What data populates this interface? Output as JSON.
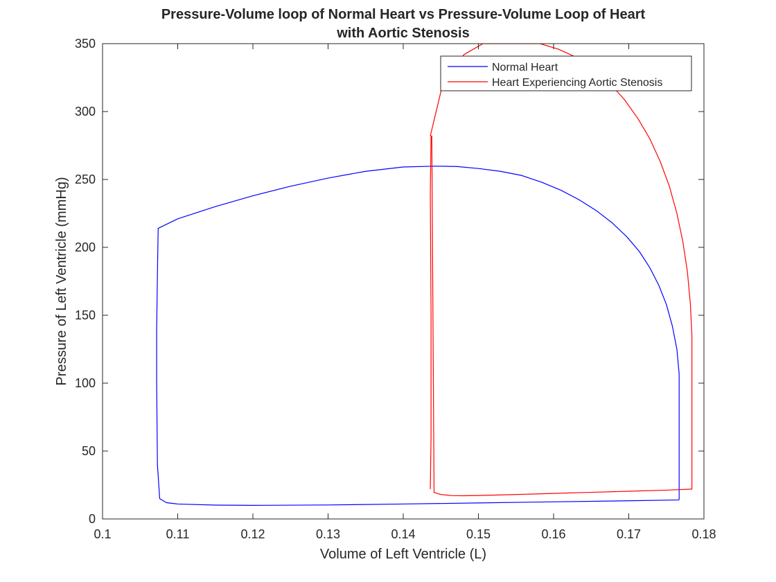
{
  "chart_data": {
    "type": "line",
    "title": [
      "Pressure-Volume loop of Normal Heart vs Pressure-Volume Loop of Heart",
      "with Aortic Stenosis"
    ],
    "xlabel": "Volume of Left Ventricle (L)",
    "ylabel": "Pressure of Left Ventricle (mmHg)",
    "xlim": [
      0.1,
      0.18
    ],
    "ylim": [
      0,
      350
    ],
    "xticks": [
      0.1,
      0.11,
      0.12,
      0.13,
      0.14,
      0.15,
      0.16,
      0.17,
      0.18
    ],
    "xtick_labels": [
      "0.1",
      "0.11",
      "0.12",
      "0.13",
      "0.14",
      "0.15",
      "0.16",
      "0.17",
      "0.18"
    ],
    "yticks": [
      0,
      50,
      100,
      150,
      200,
      250,
      300,
      350
    ],
    "ytick_labels": [
      "0",
      "50",
      "100",
      "150",
      "200",
      "250",
      "300",
      "350"
    ],
    "grid": false,
    "legend_position": "top-right",
    "series": [
      {
        "name": "Normal Heart",
        "color": "#0000ff",
        "x": [
          0.1767,
          0.1767,
          0.1767,
          0.1767,
          0.1764,
          0.1758,
          0.175,
          0.174,
          0.1728,
          0.1714,
          0.1697,
          0.1678,
          0.1657,
          0.1634,
          0.161,
          0.1584,
          0.1557,
          0.1529,
          0.1501,
          0.1472,
          0.1443,
          0.14,
          0.135,
          0.13,
          0.125,
          0.12,
          0.115,
          0.11,
          0.1074,
          0.1073,
          0.1072,
          0.1072,
          0.1073,
          0.1076,
          0.1085,
          0.11,
          0.115,
          0.12,
          0.13,
          0.14,
          0.15,
          0.16,
          0.17,
          0.1767
        ],
        "y": [
          14,
          60,
          100,
          107,
          125,
          142,
          158,
          172,
          185,
          197,
          208,
          218,
          227,
          235,
          242,
          248,
          253,
          256,
          258,
          259.5,
          259.8,
          259.2,
          256,
          251,
          245,
          238,
          230,
          221,
          214,
          180,
          140,
          100,
          40,
          15,
          12,
          11,
          10.2,
          10,
          10.3,
          11,
          11.8,
          12.6,
          13.4,
          14
        ]
      },
      {
        "name": "Heart Experiencing Aortic Stenosis",
        "color": "#ff0000",
        "x": [
          0.1436,
          0.1437,
          0.1437,
          0.1436,
          0.1437,
          0.1438,
          0.1441,
          0.145,
          0.1465,
          0.148,
          0.15,
          0.155,
          0.16,
          0.165,
          0.17,
          0.175,
          0.1784,
          0.1784,
          0.1784,
          0.1782,
          0.1778,
          0.1772,
          0.1764,
          0.1754,
          0.1742,
          0.1728,
          0.1712,
          0.1694,
          0.1674,
          0.1652,
          0.163,
          0.1606,
          0.1582,
          0.1557,
          0.1532,
          0.1506,
          0.1481,
          0.1455,
          0.1436
        ],
        "y": [
          22,
          60,
          150,
          240,
          282,
          282,
          19.5,
          18,
          17.2,
          17.1,
          17.3,
          18,
          18.8,
          19.6,
          20.4,
          21.2,
          22,
          80,
          135,
          158,
          182,
          204,
          225,
          245,
          263,
          280,
          295,
          309,
          321,
          332,
          340,
          346,
          350,
          350,
          350,
          350,
          342,
          326,
          282
        ]
      }
    ]
  }
}
